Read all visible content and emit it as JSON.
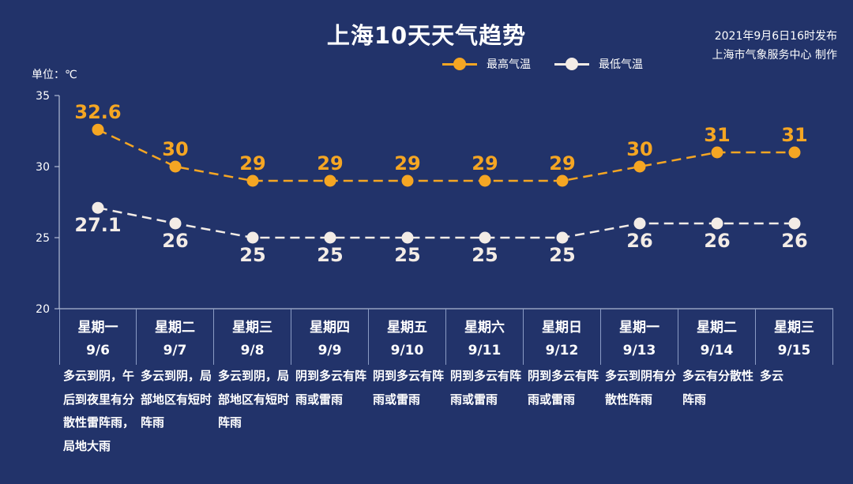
{
  "header": {
    "title": "上海10天天气趋势",
    "publish_line1": "2021年9月6日16时发布",
    "publish_line2": "上海市气象服务中心 制作",
    "unit": "单位：℃"
  },
  "colors": {
    "background": "#22336a",
    "high": "#f5a623",
    "low": "#f3ece6",
    "axis": "#cfd7ea"
  },
  "days": [
    {
      "weekday": "星期一",
      "date": "9/6",
      "desc": "多云到阴，午后到夜里有分散性雷阵雨，局地大雨"
    },
    {
      "weekday": "星期二",
      "date": "9/7",
      "desc": "多云到阴，局部地区有短时阵雨"
    },
    {
      "weekday": "星期三",
      "date": "9/8",
      "desc": "多云到阴，局部地区有短时阵雨"
    },
    {
      "weekday": "星期四",
      "date": "9/9",
      "desc": "阴到多云有阵雨或雷雨"
    },
    {
      "weekday": "星期五",
      "date": "9/10",
      "desc": "阴到多云有阵雨或雷雨"
    },
    {
      "weekday": "星期六",
      "date": "9/11",
      "desc": "阴到多云有阵雨或雷雨"
    },
    {
      "weekday": "星期日",
      "date": "9/12",
      "desc": "阴到多云有阵雨或雷雨"
    },
    {
      "weekday": "星期一",
      "date": "9/13",
      "desc": "多云到阴有分散性阵雨"
    },
    {
      "weekday": "星期二",
      "date": "9/14",
      "desc": "多云有分散性阵雨"
    },
    {
      "weekday": "星期三",
      "date": "9/15",
      "desc": "多云"
    }
  ],
  "chart_data": {
    "type": "line",
    "title": "上海10天天气趋势",
    "ylabel": "单位：℃",
    "ylim": [
      20,
      35
    ],
    "yticks": [
      20,
      25,
      30,
      35
    ],
    "categories": [
      "9/6",
      "9/7",
      "9/8",
      "9/9",
      "9/10",
      "9/11",
      "9/12",
      "9/13",
      "9/14",
      "9/15"
    ],
    "legend_position": "top-right",
    "series": [
      {
        "name": "最高气温",
        "color": "#f5a623",
        "values": [
          32.6,
          30,
          29,
          29,
          29,
          29,
          29,
          30,
          31,
          31
        ],
        "labels": [
          "32.6",
          "30",
          "29",
          "29",
          "29",
          "29",
          "29",
          "30",
          "31",
          "31"
        ]
      },
      {
        "name": "最低气温",
        "color": "#f3ece6",
        "values": [
          27.1,
          26,
          25,
          25,
          25,
          25,
          25,
          26,
          26,
          26
        ],
        "labels": [
          "27.1",
          "26",
          "25",
          "25",
          "25",
          "25",
          "25",
          "26",
          "26",
          "26"
        ]
      }
    ]
  }
}
